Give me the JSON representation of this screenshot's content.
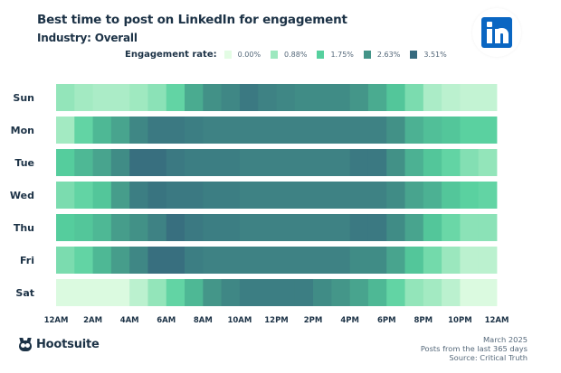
{
  "header": {
    "title": "Best time to post on LinkedIn for engagement",
    "subtitle": "Industry: Overall",
    "logo": "linkedin-logo-icon"
  },
  "legend": {
    "label": "Engagement rate:",
    "items": [
      {
        "label": "0.00%",
        "color": "#e3fce4"
      },
      {
        "label": "0.88%",
        "color": "#9de8bf"
      },
      {
        "label": "1.75%",
        "color": "#56d09e"
      },
      {
        "label": "2.63%",
        "color": "#439488"
      },
      {
        "label": "3.51%",
        "color": "#366a7e"
      }
    ]
  },
  "chart_data": {
    "type": "heatmap",
    "title": "Best time to post on LinkedIn for engagement",
    "subtitle": "Industry: Overall",
    "xlabel": "",
    "ylabel": "",
    "value_label": "Engagement rate (%)",
    "value_range": [
      0.0,
      3.51
    ],
    "x_tick_labels": [
      "12AM",
      "2AM",
      "4AM",
      "6AM",
      "8AM",
      "10AM",
      "12PM",
      "2PM",
      "4PM",
      "6PM",
      "8PM",
      "10PM",
      "12AM"
    ],
    "hours": [
      "12AM",
      "1AM",
      "2AM",
      "3AM",
      "4AM",
      "5AM",
      "6AM",
      "7AM",
      "8AM",
      "9AM",
      "10AM",
      "11AM",
      "12PM",
      "1PM",
      "2PM",
      "3PM",
      "4PM",
      "5PM",
      "6PM",
      "7PM",
      "8PM",
      "9PM",
      "10PM",
      "11PM"
    ],
    "days": [
      "Sun",
      "Mon",
      "Tue",
      "Wed",
      "Thu",
      "Fri",
      "Sat"
    ],
    "values": [
      [
        1.0,
        0.8,
        0.7,
        0.7,
        0.85,
        1.1,
        1.6,
        2.3,
        2.7,
        2.9,
        3.2,
        3.0,
        2.9,
        2.8,
        2.8,
        2.8,
        2.6,
        2.3,
        1.9,
        1.3,
        0.7,
        0.5,
        0.4,
        0.4
      ],
      [
        0.8,
        1.6,
        2.1,
        2.4,
        2.9,
        3.2,
        3.2,
        3.1,
        3.0,
        3.0,
        3.0,
        3.0,
        3.0,
        3.0,
        3.0,
        3.0,
        3.0,
        3.0,
        2.7,
        2.2,
        2.0,
        1.9,
        1.7,
        1.7
      ],
      [
        1.8,
        2.1,
        2.4,
        2.8,
        3.4,
        3.4,
        3.2,
        3.1,
        3.1,
        3.1,
        3.0,
        3.0,
        3.0,
        3.0,
        3.0,
        3.0,
        3.2,
        3.2,
        2.7,
        2.2,
        1.9,
        1.6,
        1.2,
        1.0
      ],
      [
        1.3,
        1.6,
        1.9,
        2.5,
        3.1,
        3.3,
        3.2,
        3.2,
        3.1,
        3.1,
        3.0,
        3.0,
        3.0,
        3.0,
        3.0,
        3.0,
        3.0,
        3.0,
        2.8,
        2.4,
        2.2,
        1.9,
        1.7,
        1.6
      ],
      [
        1.8,
        1.9,
        2.1,
        2.5,
        2.7,
        3.0,
        3.4,
        3.2,
        3.1,
        3.1,
        3.0,
        3.0,
        3.0,
        3.0,
        3.0,
        3.0,
        3.2,
        3.2,
        2.8,
        2.4,
        1.9,
        1.5,
        1.1,
        1.1
      ],
      [
        1.3,
        1.6,
        2.1,
        2.5,
        2.9,
        3.4,
        3.4,
        3.1,
        3.0,
        3.0,
        3.0,
        3.0,
        3.0,
        3.0,
        3.0,
        3.0,
        2.8,
        2.8,
        2.4,
        1.9,
        1.4,
        0.9,
        0.5,
        0.5
      ],
      [
        0.1,
        0.1,
        0.1,
        0.1,
        0.5,
        1.0,
        1.6,
        2.1,
        2.6,
        2.9,
        3.1,
        3.1,
        3.1,
        3.1,
        2.8,
        2.6,
        2.4,
        2.1,
        1.6,
        1.0,
        0.8,
        0.5,
        0.1,
        0.1
      ]
    ],
    "color_stops": [
      {
        "value": 0.0,
        "color": "#e3fce4"
      },
      {
        "value": 0.88,
        "color": "#9de8bf"
      },
      {
        "value": 1.75,
        "color": "#56d09e"
      },
      {
        "value": 2.63,
        "color": "#439488"
      },
      {
        "value": 3.51,
        "color": "#366a7e"
      }
    ],
    "grid": false,
    "legend_position": "top"
  },
  "footer": {
    "brand": "Hootsuite",
    "date": "March 2025",
    "period": "Posts from the last 365 days",
    "source": "Source: Critical Truth"
  }
}
